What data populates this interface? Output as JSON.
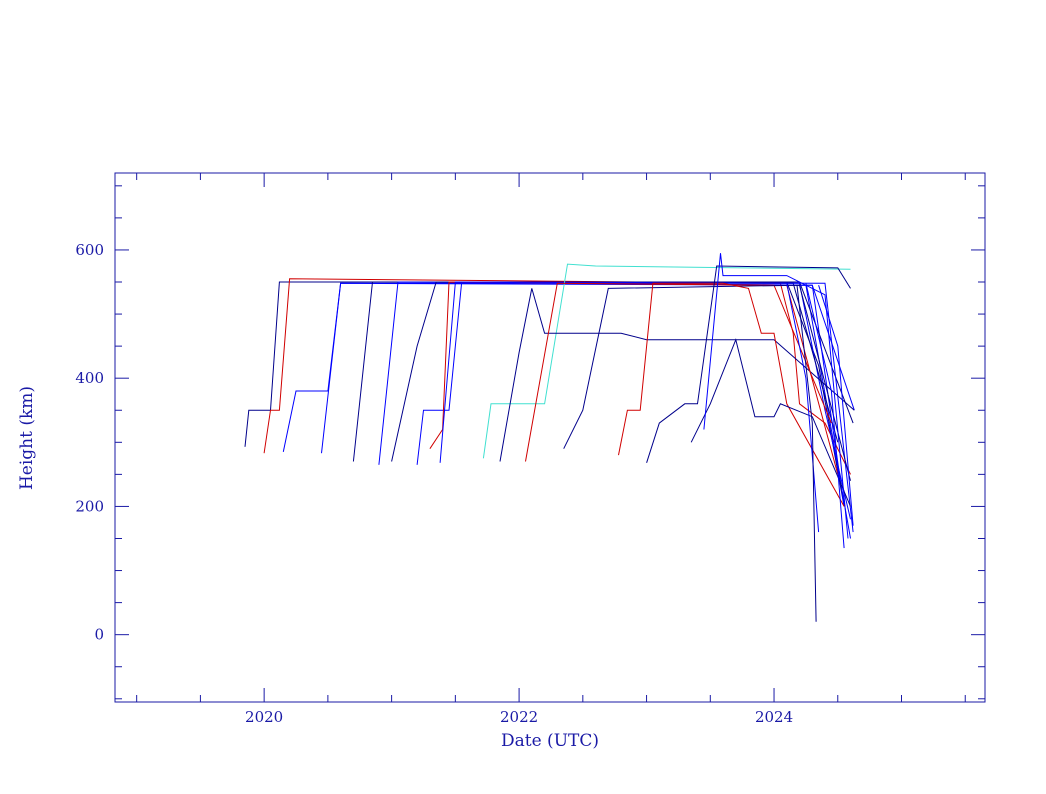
{
  "chart_data": {
    "type": "line",
    "xlabel": "Date (UTC)",
    "ylabel": "Height (km)",
    "xlim": [
      2018.83,
      2025.655
    ],
    "ylim": [
      -105,
      720
    ],
    "xticks": [
      2020,
      2022,
      2024
    ],
    "yticks": [
      0,
      200,
      400,
      600
    ],
    "xticks_minor": [
      2019,
      2019.5,
      2020.5,
      2021,
      2021.5,
      2022.5,
      2023,
      2023.5,
      2024.5,
      2025,
      2025.5
    ],
    "yticks_minor": [
      -100,
      -50,
      50,
      100,
      150,
      250,
      300,
      350,
      450,
      500,
      550,
      650,
      700
    ],
    "axis_color": "#1a1aa6",
    "series": [
      {
        "color": "#00008b",
        "x": [
          2019.85,
          2019.88,
          2020.05,
          2020.12,
          2024.1,
          2024.35,
          2024.55
        ],
        "values": [
          293,
          350,
          350,
          550,
          550,
          420,
          200
        ]
      },
      {
        "color": "#d00000",
        "x": [
          2020.0,
          2020.05,
          2020.12,
          2020.2,
          2024.05,
          2024.15,
          2024.2,
          2024.4,
          2024.6
        ],
        "values": [
          283,
          350,
          350,
          555,
          548,
          470,
          360,
          330,
          250
        ]
      },
      {
        "color": "#0000ff",
        "x": [
          2020.15,
          2020.25,
          2020.5,
          2020.6,
          2024.2,
          2024.4,
          2024.6
        ],
        "values": [
          285,
          380,
          380,
          548,
          548,
          350,
          180
        ]
      },
      {
        "color": "#0000ff",
        "x": [
          2020.45,
          2020.6,
          2024.25,
          2024.6
        ],
        "values": [
          283,
          548,
          545,
          150
        ]
      },
      {
        "color": "#00008b",
        "x": [
          2020.7,
          2020.85,
          2024.15,
          2024.5
        ],
        "values": [
          270,
          550,
          548,
          300
        ]
      },
      {
        "color": "#0000ff",
        "x": [
          2020.9,
          2021.05,
          2024.3,
          2024.55
        ],
        "values": [
          265,
          550,
          545,
          200
        ]
      },
      {
        "color": "#00008b",
        "x": [
          2021.0,
          2021.2,
          2021.35,
          2024.2,
          2024.62
        ],
        "values": [
          270,
          450,
          550,
          550,
          330
        ]
      },
      {
        "color": "#0000ff",
        "x": [
          2021.2,
          2021.25,
          2021.45,
          2021.55,
          2024.4,
          2024.62
        ],
        "values": [
          265,
          350,
          350,
          550,
          548,
          160
        ]
      },
      {
        "color": "#d00000",
        "x": [
          2021.3,
          2021.4,
          2021.45,
          2024.1,
          2024.5
        ],
        "values": [
          290,
          320,
          550,
          545,
          250
        ]
      },
      {
        "color": "#0000ff",
        "x": [
          2021.38,
          2021.5,
          2024.3,
          2024.63
        ],
        "values": [
          268,
          550,
          545,
          350
        ]
      },
      {
        "color": "#40e0d0",
        "x": [
          2021.72,
          2021.78,
          2022.2,
          2022.38,
          2022.6,
          2024.6
        ],
        "values": [
          275,
          360,
          360,
          578,
          575,
          570
        ]
      },
      {
        "color": "#00008b",
        "x": [
          2021.85,
          2022.0,
          2022.1,
          2022.2,
          2022.8,
          2023.0,
          2024.0,
          2024.4,
          2024.63
        ],
        "values": [
          270,
          440,
          540,
          470,
          470,
          460,
          460,
          390,
          350
        ]
      },
      {
        "color": "#d00000",
        "x": [
          2022.05,
          2022.3,
          2024.0,
          2024.45
        ],
        "values": [
          270,
          548,
          545,
          330
        ]
      },
      {
        "color": "#00008b",
        "x": [
          2022.35,
          2022.5,
          2022.7,
          2024.2,
          2024.6
        ],
        "values": [
          290,
          350,
          540,
          545,
          240
        ]
      },
      {
        "color": "#d00000",
        "x": [
          2022.78,
          2022.85,
          2022.95,
          2023.05,
          2023.6,
          2023.8,
          2023.9,
          2024.0,
          2024.1,
          2024.55
        ],
        "values": [
          280,
          350,
          350,
          548,
          548,
          540,
          470,
          470,
          360,
          200
        ]
      },
      {
        "color": "#00008b",
        "x": [
          2023.0,
          2023.1,
          2023.3,
          2023.4,
          2023.55,
          2024.5,
          2024.6
        ],
        "values": [
          268,
          330,
          360,
          360,
          575,
          572,
          540
        ]
      },
      {
        "color": "#00008b",
        "x": [
          2023.35,
          2023.5,
          2023.7,
          2023.85,
          2024.0,
          2024.05,
          2024.3,
          2024.6
        ],
        "values": [
          300,
          360,
          460,
          340,
          340,
          360,
          340,
          200
        ]
      },
      {
        "color": "#0000ff",
        "x": [
          2023.45,
          2023.58,
          2023.6,
          2024.1,
          2024.4,
          2024.58
        ],
        "values": [
          320,
          595,
          560,
          560,
          530,
          150
        ]
      },
      {
        "color": "#0000ff",
        "x": [
          2024.1,
          2024.25,
          2024.35
        ],
        "values": [
          548,
          400,
          160
        ]
      },
      {
        "color": "#00008b",
        "x": [
          2024.18,
          2024.3,
          2024.33
        ],
        "values": [
          545,
          330,
          20
        ]
      },
      {
        "color": "#0000ff",
        "x": [
          2024.25,
          2024.45,
          2024.55
        ],
        "values": [
          548,
          380,
          135
        ]
      },
      {
        "color": "#0000ff",
        "x": [
          2024.35,
          2024.5,
          2024.62
        ],
        "values": [
          545,
          450,
          170
        ]
      }
    ]
  }
}
